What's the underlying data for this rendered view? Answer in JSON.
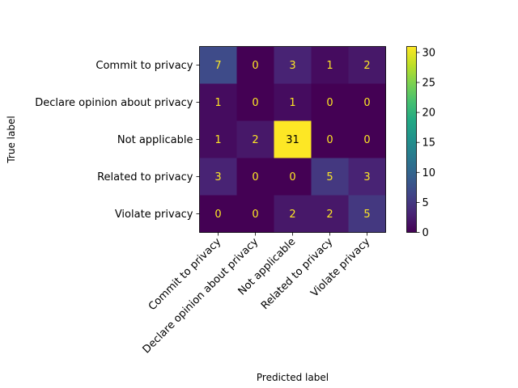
{
  "chart_data": {
    "type": "heatmap",
    "title": "",
    "xlabel": "Predicted label",
    "ylabel": "True label",
    "x_categories": [
      "Commit to privacy",
      "Declare opinion about privacy",
      "Not applicable",
      "Related to privacy",
      "Violate privacy"
    ],
    "y_categories": [
      "Commit to privacy",
      "Declare opinion about privacy",
      "Not applicable",
      "Related to privacy",
      "Violate privacy"
    ],
    "values": [
      [
        7,
        0,
        3,
        1,
        2
      ],
      [
        1,
        0,
        1,
        0,
        0
      ],
      [
        1,
        2,
        31,
        0,
        0
      ],
      [
        3,
        0,
        0,
        5,
        3
      ],
      [
        0,
        0,
        2,
        2,
        5
      ]
    ],
    "colorbar": {
      "range": [
        0,
        31
      ],
      "ticks": [
        "0",
        "5",
        "10",
        "15",
        "20",
        "25",
        "30"
      ],
      "colormap": "viridis"
    },
    "text_colors": {
      "light_cell": "#000000",
      "dark_cell": "#fde725"
    }
  }
}
